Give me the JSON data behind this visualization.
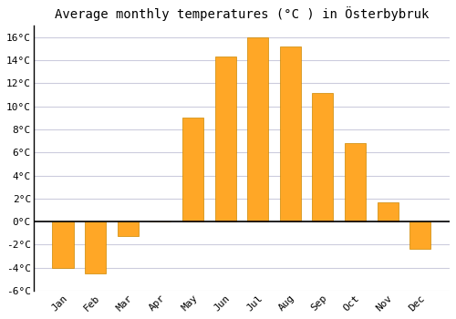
{
  "title": "Average monthly temperatures (°C ) in Österbybruk",
  "months": [
    "Jan",
    "Feb",
    "Mar",
    "Apr",
    "May",
    "Jun",
    "Jul",
    "Aug",
    "Sep",
    "Oct",
    "Nov",
    "Dec"
  ],
  "temperatures": [
    -4.0,
    -4.5,
    -1.3,
    0.0,
    9.0,
    14.3,
    16.0,
    15.2,
    11.2,
    6.8,
    1.7,
    -2.4
  ],
  "bar_color": "#FFA726",
  "bar_edge_color": "#CC8800",
  "background_color": "#FFFFFF",
  "grid_color": "#CCCCDD",
  "ylim": [
    -6,
    17
  ],
  "yticks": [
    -6,
    -4,
    -2,
    0,
    2,
    4,
    6,
    8,
    10,
    12,
    14,
    16
  ],
  "zero_line_color": "#000000",
  "title_fontsize": 10,
  "tick_fontsize": 8,
  "font_family": "monospace",
  "bar_width": 0.65
}
